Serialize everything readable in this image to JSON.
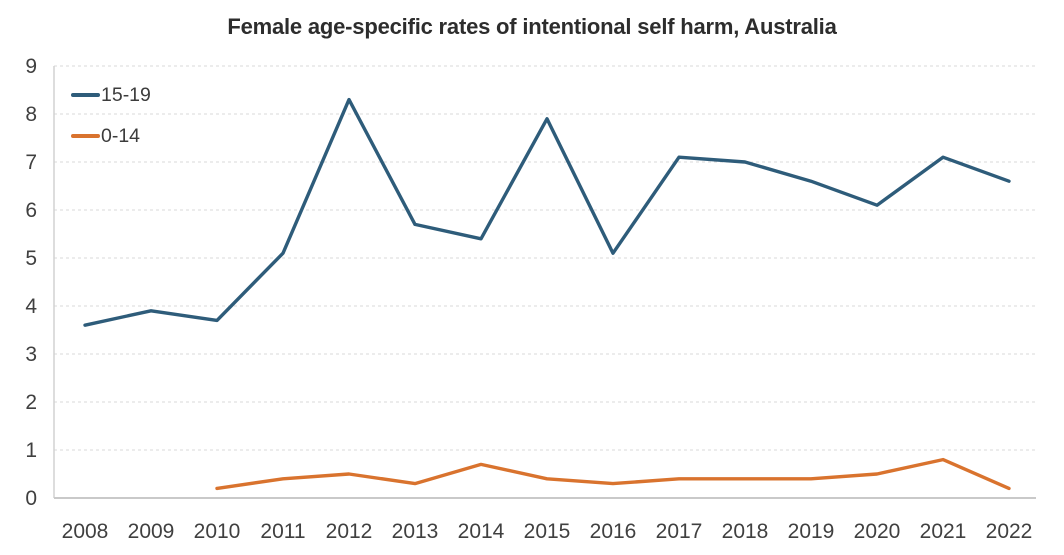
{
  "chart_data": {
    "type": "line",
    "title": "Female age-specific rates of intentional self harm, Australia",
    "categories": [
      "2008",
      "2009",
      "2010",
      "2011",
      "2012",
      "2013",
      "2014",
      "2015",
      "2016",
      "2017",
      "2018",
      "2019",
      "2020",
      "2021",
      "2022"
    ],
    "series": [
      {
        "name": "15-19",
        "color": "#2e5c7a",
        "values": [
          3.6,
          3.9,
          3.7,
          5.1,
          8.3,
          5.7,
          5.4,
          7.9,
          5.1,
          7.1,
          7.0,
          6.6,
          6.1,
          7.1,
          6.6
        ]
      },
      {
        "name": "0-14",
        "color": "#d9732e",
        "values": [
          null,
          null,
          0.2,
          0.4,
          0.5,
          0.3,
          0.7,
          0.4,
          0.3,
          0.4,
          0.4,
          0.4,
          0.5,
          0.8,
          0.2
        ]
      }
    ],
    "xlabel": "",
    "ylabel": "",
    "ylim": [
      0,
      9
    ],
    "ytick_step": 1,
    "yticks": [
      0,
      1,
      2,
      3,
      4,
      5,
      6,
      7,
      8,
      9
    ],
    "grid": "horizontal dashed gridlines at each integer",
    "legend_position": "top-left inside plot area, vertical"
  },
  "styles": {
    "grid_color": "#d9d9d9",
    "axis_line_color": "#c9c9c9",
    "left_border_color": "#d2d2d2",
    "tick_label_color": "#404040",
    "title_color": "#2d2d2d",
    "background": "#ffffff"
  }
}
